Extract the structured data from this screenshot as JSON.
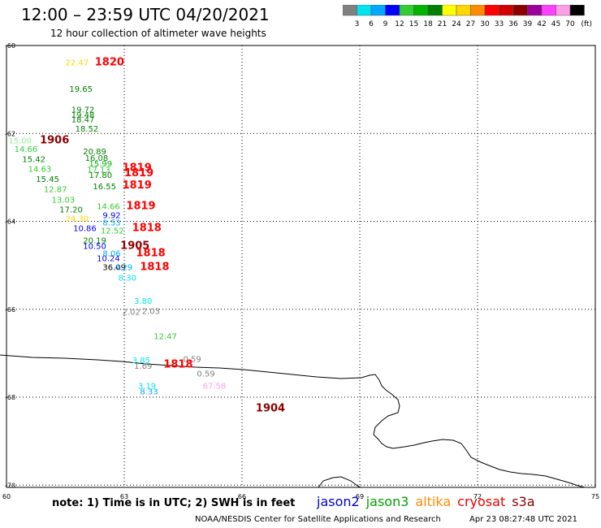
{
  "header": {
    "title": "12:00 – 23:59 UTC 04/20/2021",
    "subtitle": "12 hour collection of altimeter wave heights"
  },
  "legend": {
    "unit": "(ft)",
    "bins": [
      {
        "label": "3",
        "color": "#808080"
      },
      {
        "label": "6",
        "color": "#00e5ee"
      },
      {
        "label": "9",
        "color": "#00a8ff"
      },
      {
        "label": "12",
        "color": "#0000ff"
      },
      {
        "label": "15",
        "color": "#32cd32"
      },
      {
        "label": "18",
        "color": "#00b400"
      },
      {
        "label": "21",
        "color": "#008000"
      },
      {
        "label": "24",
        "color": "#ffff00"
      },
      {
        "label": "27",
        "color": "#ffd700"
      },
      {
        "label": "30",
        "color": "#ff8c00"
      },
      {
        "label": "33",
        "color": "#ff0000"
      },
      {
        "label": "36",
        "color": "#d00000"
      },
      {
        "label": "39",
        "color": "#8b0000"
      },
      {
        "label": "42",
        "color": "#9b009b"
      },
      {
        "label": "45",
        "color": "#ff40ff"
      },
      {
        "label": "70",
        "color": "#ff9ee8"
      },
      {
        "label": "",
        "color": "#000000"
      }
    ]
  },
  "axes": {
    "lon_ticks": [
      "60",
      "63",
      "66",
      "69",
      "72",
      "75"
    ],
    "lat_ticks": [
      "-60",
      "-62",
      "-64",
      "-66",
      "-68",
      "-70"
    ],
    "lon_range": [
      60,
      75
    ],
    "lat_range": [
      -60,
      -70.05
    ]
  },
  "observations": [
    {
      "text": "22.47",
      "lon": 61.5,
      "lat": -60.38,
      "color": "#ffd700"
    },
    {
      "text": "1820",
      "lon": 62.25,
      "lat": -60.38,
      "color": "#ff0000",
      "bold": true
    },
    {
      "text": "19.65",
      "lon": 61.6,
      "lat": -60.98,
      "color": "#008000"
    },
    {
      "text": "19.72",
      "lon": 61.65,
      "lat": -61.45,
      "color": "#008000"
    },
    {
      "text": "19.48",
      "lon": 61.65,
      "lat": -61.57,
      "color": "#008000"
    },
    {
      "text": "18.47",
      "lon": 61.65,
      "lat": -61.67,
      "color": "#008000"
    },
    {
      "text": "18.52",
      "lon": 61.75,
      "lat": -61.88,
      "color": "#008000"
    },
    {
      "text": "15.00",
      "lon": 60.05,
      "lat": -62.15,
      "color": "#90ee90"
    },
    {
      "text": "1906",
      "lon": 60.85,
      "lat": -62.15,
      "color": "#8b0000",
      "bold": true
    },
    {
      "text": "14.66",
      "lon": 60.2,
      "lat": -62.35,
      "color": "#32cd32"
    },
    {
      "text": "15.42",
      "lon": 60.4,
      "lat": -62.58,
      "color": "#008000"
    },
    {
      "text": "14.63",
      "lon": 60.55,
      "lat": -62.8,
      "color": "#32cd32"
    },
    {
      "text": "15.45",
      "lon": 60.75,
      "lat": -63.03,
      "color": "#008000"
    },
    {
      "text": "12.87",
      "lon": 60.95,
      "lat": -63.26,
      "color": "#32cd32"
    },
    {
      "text": "13.03",
      "lon": 61.15,
      "lat": -63.5,
      "color": "#32cd32"
    },
    {
      "text": "17.20",
      "lon": 61.35,
      "lat": -63.72,
      "color": "#008000"
    },
    {
      "text": "24.30",
      "lon": 61.5,
      "lat": -63.93,
      "color": "#ffd700"
    },
    {
      "text": "10.86",
      "lon": 61.7,
      "lat": -64.15,
      "color": "#0000ff"
    },
    {
      "text": "20.89",
      "lon": 61.95,
      "lat": -62.4,
      "color": "#008000"
    },
    {
      "text": "16.08",
      "lon": 62.0,
      "lat": -62.55,
      "color": "#008000"
    },
    {
      "text": "15.99",
      "lon": 62.1,
      "lat": -62.68,
      "color": "#00b400"
    },
    {
      "text": "17.13",
      "lon": 62.05,
      "lat": -62.82,
      "color": "#32cd32"
    },
    {
      "text": "17.80",
      "lon": 62.1,
      "lat": -62.94,
      "color": "#008000"
    },
    {
      "text": "16.55",
      "lon": 62.2,
      "lat": -63.2,
      "color": "#008000"
    },
    {
      "text": "1819",
      "lon": 62.95,
      "lat": -62.78,
      "color": "#ff0000",
      "bold": true
    },
    {
      "text": "1819",
      "lon": 63.0,
      "lat": -62.9,
      "color": "#ff0000",
      "bold": true
    },
    {
      "text": "1819",
      "lon": 62.95,
      "lat": -63.18,
      "color": "#ff0000",
      "bold": true
    },
    {
      "text": "1819",
      "lon": 63.05,
      "lat": -63.65,
      "color": "#ff0000",
      "bold": true
    },
    {
      "text": "14.66",
      "lon": 62.3,
      "lat": -63.65,
      "color": "#32cd32"
    },
    {
      "text": "9.92",
      "lon": 62.45,
      "lat": -63.85,
      "color": "#0000ff"
    },
    {
      "text": "8.53",
      "lon": 62.45,
      "lat": -64.02,
      "color": "#00a8ff"
    },
    {
      "text": "12.52",
      "lon": 62.4,
      "lat": -64.2,
      "color": "#32cd32"
    },
    {
      "text": "1818",
      "lon": 63.2,
      "lat": -64.15,
      "color": "#ff0000",
      "bold": true
    },
    {
      "text": "20.19",
      "lon": 61.95,
      "lat": -64.42,
      "color": "#008000"
    },
    {
      "text": "10.50",
      "lon": 61.95,
      "lat": -64.55,
      "color": "#0000ff"
    },
    {
      "text": "1905",
      "lon": 62.9,
      "lat": -64.55,
      "color": "#8b0000",
      "bold": true
    },
    {
      "text": "8.06",
      "lon": 62.45,
      "lat": -64.72,
      "color": "#00a8ff"
    },
    {
      "text": "1818",
      "lon": 63.3,
      "lat": -64.72,
      "color": "#ff0000",
      "bold": true
    },
    {
      "text": "10.24",
      "lon": 62.3,
      "lat": -64.83,
      "color": "#0000ff"
    },
    {
      "text": "36.09",
      "lon": 62.45,
      "lat": -65.03,
      "color": "#000000"
    },
    {
      "text": "4.29",
      "lon": 62.75,
      "lat": -65.03,
      "color": "#00a8ff"
    },
    {
      "text": "1818",
      "lon": 63.4,
      "lat": -65.03,
      "color": "#ff0000",
      "bold": true
    },
    {
      "text": "8.30",
      "lon": 62.85,
      "lat": -65.27,
      "color": "#00e5ee"
    },
    {
      "text": "3.80",
      "lon": 63.25,
      "lat": -65.8,
      "color": "#00e5ee"
    },
    {
      "text": "2.02",
      "lon": 62.95,
      "lat": -66.05,
      "color": "#808080"
    },
    {
      "text": "2.03",
      "lon": 63.45,
      "lat": -66.03,
      "color": "#808080"
    },
    {
      "text": "12.47",
      "lon": 63.75,
      "lat": -66.6,
      "color": "#32cd32"
    },
    {
      "text": "3.85",
      "lon": 63.2,
      "lat": -67.15,
      "color": "#00e5ee"
    },
    {
      "text": "1.69",
      "lon": 63.25,
      "lat": -67.28,
      "color": "#808080"
    },
    {
      "text": "1818",
      "lon": 64.0,
      "lat": -67.25,
      "color": "#ff0000",
      "bold": true
    },
    {
      "text": "0.59",
      "lon": 64.5,
      "lat": -67.12,
      "color": "#808080"
    },
    {
      "text": "0.59",
      "lon": 64.85,
      "lat": -67.45,
      "color": "#808080"
    },
    {
      "text": "3.19",
      "lon": 63.35,
      "lat": -67.73,
      "color": "#00e5ee"
    },
    {
      "text": "8.33",
      "lon": 63.4,
      "lat": -67.86,
      "color": "#00a8ff"
    },
    {
      "text": "67.58",
      "lon": 65.0,
      "lat": -67.73,
      "color": "#ff9ee8"
    },
    {
      "text": "1904",
      "lon": 66.35,
      "lat": -68.25,
      "color": "#8b0000",
      "bold": true
    }
  ],
  "footer": {
    "note": "note: 1) Time is in UTC; 2) SWH is in feet",
    "satellites": [
      {
        "name": "jason2",
        "color": "#0000cd"
      },
      {
        "name": "jason3",
        "color": "#00a000"
      },
      {
        "name": "altika",
        "color": "#ff8c00"
      },
      {
        "name": "cryosat",
        "color": "#ee0000"
      },
      {
        "name": "s3a",
        "color": "#8b0000"
      }
    ],
    "credit": "NOAA/NESDIS Center for Satellite Applications and Research",
    "timestamp": "Apr 23 08:27:48 UTC 2021"
  }
}
